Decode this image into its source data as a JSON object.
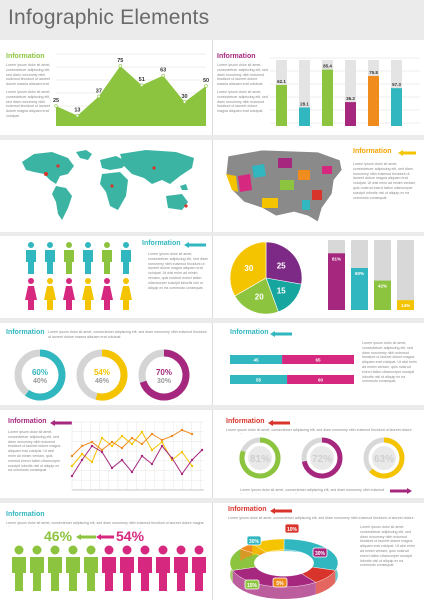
{
  "page_title": "Infographic Elements",
  "info_label": "Information",
  "lorem": "Lorem ipsum dolor sit amet, consectetuer adipiscing elit, sed diam nonummy nibh euismod tincidunt ut laoreet dolore magna aliquam erat volutpat.",
  "lorem_long": "Lorem ipsum dolor sit amet, consectetuer adipiscing elit, sed diam nonummy nibh euismod tincidunt ut laoreet dolore magna aliquam erat volutpat. Ut wisi enim ad minim veniam, quis nostrud exerci tation ullamcorper suscipit lobortis nisl ut aliquip ex ea commodo consequat.",
  "colors": {
    "purple": "#a6287e",
    "teal": "#31b7bf",
    "green": "#8cc43f",
    "yellow": "#f5c400",
    "magenta": "#d6287f",
    "orange": "#f08b1e",
    "red": "#d9342b",
    "gray": "#9a9a9a"
  },
  "chart_data": [
    {
      "type": "area",
      "values": [
        25,
        13,
        37,
        75,
        51,
        63,
        30,
        50
      ]
    },
    {
      "type": "bar",
      "values": [
        62.1,
        28.1,
        85.4,
        36.2,
        75.8,
        57.3
      ]
    },
    {
      "type": "pie",
      "values": [
        25,
        15,
        20,
        30
      ]
    },
    {
      "type": "bar",
      "values": [
        81,
        60,
        42,
        14
      ],
      "labels": [
        "81%",
        "60%",
        "42%",
        "14%"
      ]
    },
    {
      "type": "bar",
      "labels": [
        "45",
        "65",
        "55",
        "60"
      ]
    },
    {
      "type": "pie",
      "labels": [
        "60%",
        "40%",
        "54%",
        "46%",
        "70%",
        "30%"
      ]
    },
    {
      "type": "pie",
      "labels": [
        "81%",
        "72%",
        "63%"
      ]
    },
    {
      "type": "pie",
      "labels": [
        "30%",
        "10%",
        "30%",
        "15%",
        "5%"
      ]
    },
    {
      "type": "bar",
      "labels": [
        "46%",
        "54%"
      ]
    }
  ]
}
